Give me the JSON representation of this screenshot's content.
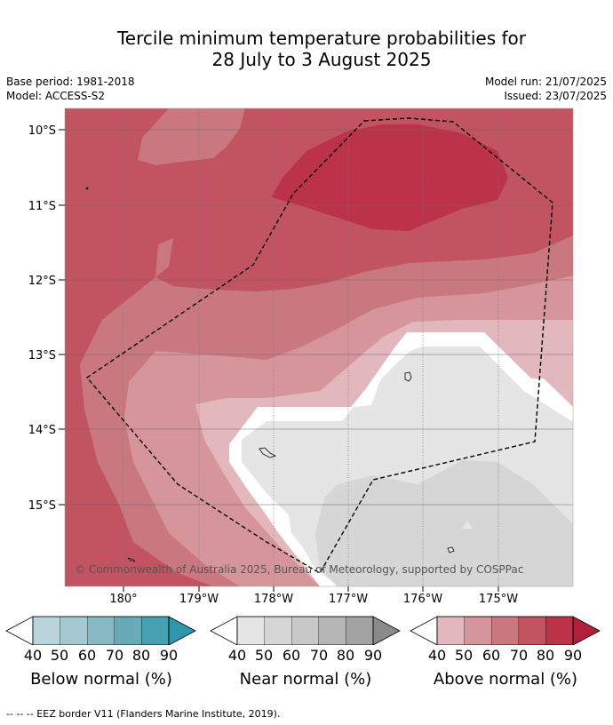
{
  "title": {
    "line1": "Tercile minimum temperature probabilities for",
    "line2": "28 July to 3 August 2025"
  },
  "meta": {
    "base_period": "Base period: 1981-2018",
    "model": "Model: ACCESS-S2",
    "model_run": "Model run: 21/07/2025",
    "issued": "Issued: 23/07/2025"
  },
  "map": {
    "lat_labels": [
      "10°S",
      "11°S",
      "12°S",
      "13°S",
      "14°S",
      "15°S"
    ],
    "lon_labels": [
      "180°",
      "179°W",
      "178°W",
      "177°W",
      "176°W",
      "175°W"
    ],
    "copyright": "© Commonwealth of Australia 2025, Bureau of Meteorology, supported by COSPPac"
  },
  "legends": [
    {
      "label": "Below normal (%)",
      "ticks": [
        "40",
        "50",
        "60",
        "70",
        "80",
        "90"
      ],
      "colors": [
        "#bad4dc",
        "#a6c8d0",
        "#88b8c4",
        "#67aab8",
        "#45a0b2",
        "#2f96ab"
      ]
    },
    {
      "label": "Near normal (%)",
      "ticks": [
        "40",
        "50",
        "60",
        "70",
        "80",
        "90"
      ],
      "colors": [
        "#e5e5e5",
        "#d6d6d6",
        "#c8c8c8",
        "#b5b5b5",
        "#a3a3a3",
        "#8a8a8a"
      ]
    },
    {
      "label": "Above normal (%)",
      "ticks": [
        "40",
        "50",
        "60",
        "70",
        "80",
        "90"
      ],
      "colors": [
        "#e3b8bd",
        "#d6959b",
        "#ca7880",
        "#c25462",
        "#bb3249",
        "#b0203b"
      ]
    }
  ],
  "footnote": "--  --  -- EEZ border V11 (Flanders Marine Institute, 2019)."
}
